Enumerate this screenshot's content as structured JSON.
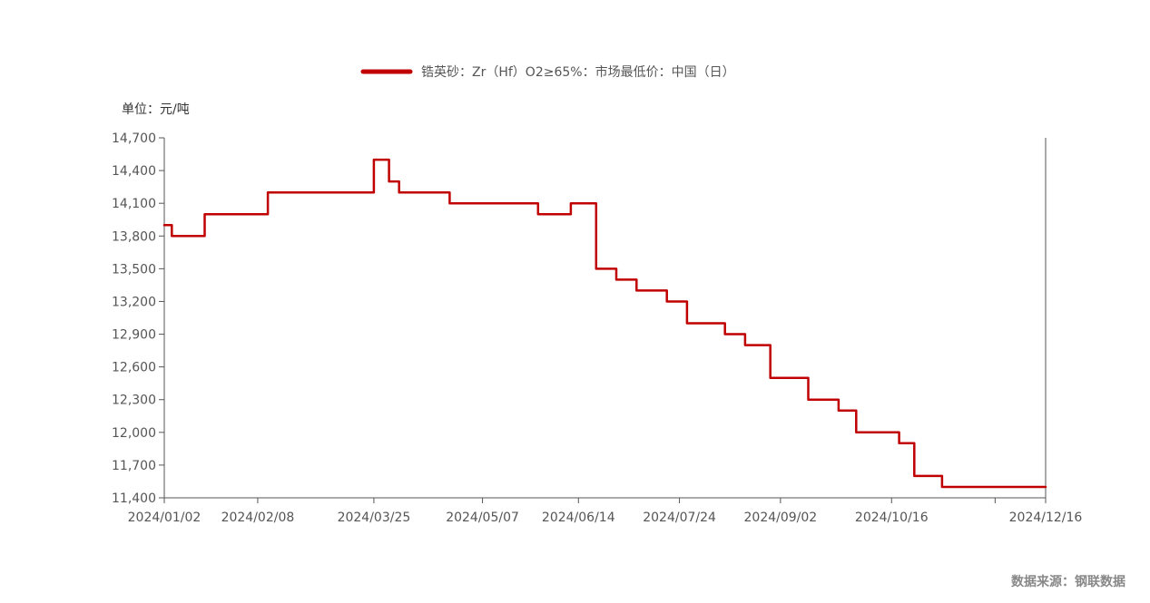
{
  "legend": {
    "label": "锆英砂：Zr（Hf）O2≥65%：市场最低价：中国（日）"
  },
  "unit_label": "单位：元/吨",
  "source": "数据来源：钢联数据",
  "colors": {
    "series": "#c00000",
    "axis": "#555555",
    "tick_text": "#555555"
  },
  "chart_data": {
    "type": "line",
    "step": true,
    "title": "",
    "xlabel": "",
    "ylabel": "",
    "ylim": [
      11400,
      14700
    ],
    "yticks": [
      11400,
      11700,
      12000,
      12300,
      12600,
      12900,
      13200,
      13500,
      13800,
      14100,
      14400,
      14700
    ],
    "ytick_labels": [
      "11,400",
      "11,700",
      "12,000",
      "12,300",
      "12,600",
      "12,900",
      "13,200",
      "13,500",
      "13,800",
      "14,100",
      "14,400",
      "14,700"
    ],
    "xlim": [
      "2024-01-02",
      "2024-12-16"
    ],
    "xticks": [
      "2024-01-02",
      "2024-02-08",
      "2024-03-25",
      "2024-05-07",
      "2024-06-14",
      "2024-07-24",
      "2024-09-02",
      "2024-10-16",
      "2024-12-16"
    ],
    "xtick_labels": [
      "2024/01/02",
      "2024/02/08",
      "2024/03/25",
      "2024/05/07",
      "2024/06/14",
      "2024/07/24",
      "2024/09/02",
      "2024/10/16",
      "2024/12/16"
    ],
    "xtick_marks": [
      "2024-01-02",
      "2024-02-08",
      "2024-03-25",
      "2024-05-07",
      "2024-06-14",
      "2024-07-24",
      "2024-09-02",
      "2024-10-16",
      "2024-11-26",
      "2024-12-16"
    ],
    "series": [
      {
        "name": "锆英砂：Zr（Hf）O2≥65%：市场最低价：中国（日）",
        "points": [
          [
            "2024-01-02",
            13900
          ],
          [
            "2024-01-05",
            13800
          ],
          [
            "2024-01-18",
            14000
          ],
          [
            "2024-02-12",
            14200
          ],
          [
            "2024-03-25",
            14500
          ],
          [
            "2024-03-31",
            14300
          ],
          [
            "2024-04-04",
            14200
          ],
          [
            "2024-04-24",
            14100
          ],
          [
            "2024-05-29",
            14000
          ],
          [
            "2024-06-11",
            14100
          ],
          [
            "2024-06-21",
            13500
          ],
          [
            "2024-06-29",
            13400
          ],
          [
            "2024-07-07",
            13300
          ],
          [
            "2024-07-19",
            13200
          ],
          [
            "2024-07-27",
            13000
          ],
          [
            "2024-08-11",
            12900
          ],
          [
            "2024-08-19",
            12800
          ],
          [
            "2024-08-29",
            12500
          ],
          [
            "2024-09-13",
            12300
          ],
          [
            "2024-09-25",
            12200
          ],
          [
            "2024-10-02",
            12000
          ],
          [
            "2024-10-19",
            11900
          ],
          [
            "2024-10-25",
            11600
          ],
          [
            "2024-11-05",
            11500
          ],
          [
            "2024-12-16",
            11500
          ]
        ]
      }
    ]
  }
}
